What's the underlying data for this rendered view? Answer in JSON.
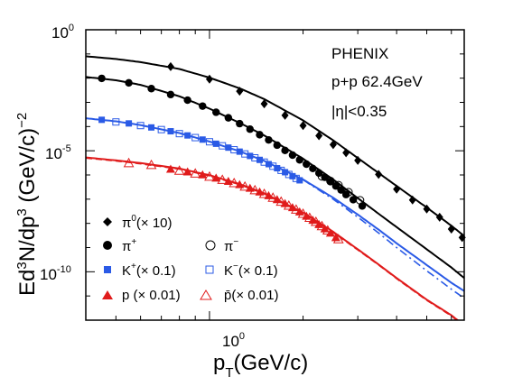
{
  "chart_data": {
    "type": "scatter",
    "title": "",
    "xlabel": "p_T(GeV/c)",
    "ylabel": "Ed^3N/dp^3 (GeV/c)^-2",
    "xscale": "log",
    "yscale": "log",
    "xlim": [
      0.4,
      6.6
    ],
    "ylim": [
      1e-12,
      1
    ],
    "x_tick_labels": [
      {
        "base": "10",
        "exp": "0",
        "value": 1
      }
    ],
    "y_tick_labels": [
      {
        "base": "10",
        "exp": "0",
        "value": 1
      },
      {
        "base": "10",
        "exp": "-5",
        "value": 1e-05
      },
      {
        "base": "10",
        "exp": "-10",
        "value": 1e-10
      }
    ],
    "annotations": [
      "PHENIX",
      "p+p  62.4GeV",
      "|η|<0.35"
    ],
    "legend_placement": "bottom-left",
    "series": [
      {
        "name": "π0(× 10)",
        "marker": "diamond",
        "filled": true,
        "color": "#000000",
        "x": [
          0.75,
          1.0,
          1.25,
          1.5,
          1.75,
          2.0,
          2.25,
          2.5,
          2.75,
          3.0,
          3.5,
          4.0,
          4.5,
          5.0,
          5.5,
          6.0,
          6.5
        ],
        "y": [
          0.03,
          0.0091,
          0.0029,
          0.00087,
          0.00029,
          0.00011,
          4.2e-05,
          1.8e-05,
          8.3e-06,
          4e-06,
          1.05e-06,
          2.6e-07,
          9.2e-08,
          3.9e-08,
          1.8e-08,
          5.8e-09,
          2.6e-09
        ]
      },
      {
        "name": "π+",
        "marker": "circle",
        "filled": true,
        "color": "#000000",
        "x": [
          0.45,
          0.55,
          0.65,
          0.75,
          0.85,
          0.95,
          1.05,
          1.15,
          1.25,
          1.35,
          1.45,
          1.55,
          1.65,
          1.75,
          1.85,
          1.95,
          2.05,
          2.15,
          2.25,
          2.35,
          2.45,
          2.55,
          2.65,
          2.75,
          2.9,
          3.1
        ],
        "y": [
          0.0098,
          0.0064,
          0.0037,
          0.0021,
          0.00123,
          0.0007,
          0.00039,
          0.00023,
          0.000132,
          7.8e-05,
          4.6e-05,
          2.8e-05,
          1.7e-05,
          1.03e-05,
          6.6e-06,
          4.2e-06,
          2.8e-06,
          1.85e-06,
          1.2e-06,
          8e-07,
          5.3e-07,
          3.5e-07,
          2.4e-07,
          1.55e-07,
          9.5e-08,
          5.2e-08
        ]
      },
      {
        "name": "π−",
        "marker": "circle",
        "filled": false,
        "color": "#000000",
        "x": [
          2.3,
          2.45,
          2.6,
          2.8,
          3.05
        ],
        "y": [
          8.8e-07,
          5.6e-07,
          3.8e-07,
          1.95e-07,
          9e-08
        ]
      },
      {
        "name": "K+(× 0.1)",
        "marker": "square",
        "filled": true,
        "color": "#2a5ae6",
        "x": [
          0.45,
          0.55,
          0.65,
          0.75,
          0.85,
          0.95,
          1.05,
          1.15,
          1.25,
          1.35,
          1.45,
          1.55,
          1.65,
          1.75,
          1.85,
          1.95
        ],
        "y": [
          0.00019,
          0.000135,
          9.2e-05,
          6.4e-05,
          4.3e-05,
          2.9e-05,
          1.95e-05,
          1.35e-05,
          9.2e-06,
          6.1e-06,
          4.2e-06,
          2.8e-06,
          1.9e-06,
          1.3e-06,
          8.9e-07,
          6e-07
        ]
      },
      {
        "name": "K−(× 0.1)",
        "marker": "square",
        "filled": false,
        "color": "#2a5ae6",
        "x": [
          0.5,
          0.6,
          0.7,
          0.8,
          0.9,
          1.0,
          1.1,
          1.2,
          1.3,
          1.4,
          1.5,
          1.6,
          1.7,
          1.8,
          1.9
        ],
        "y": [
          0.000155,
          0.00011,
          7.5e-05,
          5.1e-05,
          3.5e-05,
          2.35e-05,
          1.6e-05,
          1.1e-05,
          7.4e-06,
          5.1e-06,
          3.4e-06,
          2.3e-06,
          1.55e-06,
          1.05e-06,
          7.2e-07
        ]
      },
      {
        "name": "p (× 0.01)",
        "marker": "triangle",
        "filled": true,
        "color": "#e01b1b",
        "x": [
          0.75,
          0.85,
          0.95,
          1.05,
          1.15,
          1.25,
          1.35,
          1.45,
          1.55,
          1.65,
          1.75,
          1.85,
          1.95,
          2.05,
          2.15,
          2.25,
          2.35,
          2.45,
          2.55
        ],
        "y": [
          1.75e-06,
          1.35e-06,
          1.02e-06,
          7.5e-07,
          5.5e-07,
          4e-07,
          2.85e-07,
          2e-07,
          1.4e-07,
          9.6e-08,
          6.6e-08,
          4.5e-08,
          3e-08,
          2e-08,
          1.35e-08,
          9e-09,
          6e-09,
          4e-09,
          2.6e-09
        ]
      },
      {
        "name": "p̄(× 0.01)",
        "marker": "triangle",
        "filled": false,
        "color": "#e01b1b",
        "x": [
          0.55,
          0.65,
          0.8,
          0.9,
          1.0,
          1.1,
          1.2,
          1.3,
          1.4,
          1.5,
          1.6,
          1.7,
          1.8,
          1.9,
          2.0,
          2.1,
          2.2,
          2.3,
          2.4,
          2.6
        ],
        "y": [
          3.1e-06,
          2.6e-06,
          1.5e-06,
          1.15e-06,
          8.5e-07,
          6.3e-07,
          4.6e-07,
          3.3e-07,
          2.35e-07,
          1.65e-07,
          1.15e-07,
          7.9e-08,
          5.4e-08,
          3.7e-08,
          2.5e-08,
          1.7e-08,
          1.15e-08,
          7.7e-09,
          5.1e-09,
          2.2e-09
        ]
      }
    ],
    "fit_curves": [
      {
        "color": "#000000",
        "style": "solid",
        "x": [
          0.4,
          0.5,
          0.6,
          0.8,
          1.0,
          1.25,
          1.5,
          2.0,
          2.5,
          3.0,
          3.5,
          4.0,
          5.0,
          6.0,
          6.6
        ],
        "y": [
          0.08,
          0.062,
          0.046,
          0.024,
          0.0105,
          0.0038,
          0.00136,
          0.00018,
          2.7e-05,
          5e-06,
          1.2e-06,
          3.5e-07,
          4.5e-08,
          8e-09,
          3e-09
        ]
      },
      {
        "color": "#000000",
        "style": "solid",
        "x": [
          0.4,
          0.5,
          0.6,
          0.8,
          1.0,
          1.25,
          1.5,
          2.0,
          2.5,
          3.0,
          3.5,
          4.0,
          5.0,
          6.0,
          6.6
        ],
        "y": [
          0.0112,
          0.0082,
          0.0053,
          0.00178,
          0.00055,
          0.000142,
          4.3e-05,
          4.7e-06,
          6.5e-07,
          1.1e-07,
          2.5e-08,
          7e-09,
          8.5e-10,
          1.5e-10,
          5.5e-11
        ]
      },
      {
        "color": "#2a5ae6",
        "style": "solid",
        "x": [
          0.4,
          0.5,
          0.6,
          0.8,
          1.0,
          1.25,
          1.5,
          2.0,
          2.5,
          3.0,
          3.5,
          4.0,
          5.0,
          6.0,
          6.6
        ],
        "y": [
          0.00022,
          0.000165,
          0.000115,
          5.4e-05,
          2.4e-05,
          9.5e-06,
          3.8e-06,
          6.5e-07,
          1.15e-07,
          2.3e-08,
          5.5e-09,
          1.5e-09,
          1.9e-10,
          3.5e-11,
          1.6e-11
        ]
      },
      {
        "color": "#2a5ae6",
        "style": "dashdot",
        "x": [
          2.0,
          2.5,
          3.0,
          3.5,
          4.0,
          5.0,
          6.0,
          6.6
        ],
        "y": [
          6.3e-07,
          1e-07,
          1.8e-08,
          4e-09,
          1e-09,
          1.1e-10,
          1.9e-11,
          8e-12
        ]
      },
      {
        "color": "#e01b1b",
        "style": "solid",
        "x": [
          0.4,
          0.5,
          0.6,
          0.8,
          1.0,
          1.25,
          1.5,
          2.0,
          2.5,
          3.0,
          3.5,
          4.0,
          5.0,
          6.0,
          6.6
        ],
        "y": [
          5.3e-06,
          4e-06,
          3.1e-06,
          1.85e-06,
          9.8e-07,
          4.2e-07,
          1.75e-07,
          2.8e-08,
          4.5e-09,
          8.5e-10,
          2e-10,
          5.5e-11,
          7e-12,
          1.6e-12,
          6e-13
        ]
      },
      {
        "color": "#e01b1b",
        "style": "dashed",
        "x": [
          0.4,
          0.5,
          0.6,
          0.8,
          1.0,
          1.25,
          1.5,
          2.0,
          2.5,
          3.0,
          3.5,
          4.0,
          5.0,
          6.0,
          6.6
        ],
        "y": [
          5e-06,
          3.8e-06,
          2.9e-06,
          1.75e-06,
          9.2e-07,
          4e-07,
          1.65e-07,
          2.6e-08,
          4.2e-09,
          8e-10,
          1.9e-10,
          5.2e-11,
          6.6e-12,
          1.5e-12,
          5.6e-13
        ]
      }
    ]
  }
}
